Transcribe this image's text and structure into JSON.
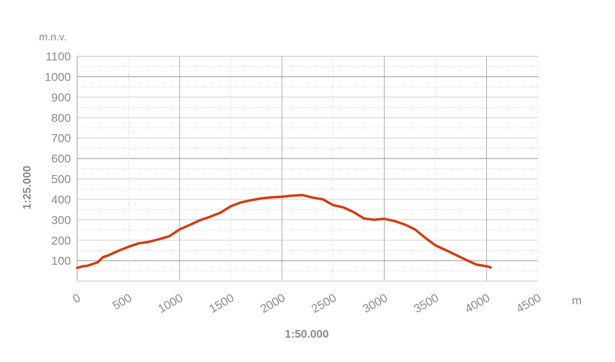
{
  "chart_data": {
    "type": "line",
    "title": "",
    "y_unit_label": "m.n.v.",
    "x_unit_label": "m",
    "ylabel": "1:25.000",
    "xlabel": "1:50.000",
    "xlim": [
      0,
      4500
    ],
    "ylim": [
      0,
      1100
    ],
    "x_ticks": [
      0,
      500,
      1000,
      1500,
      2000,
      2500,
      3000,
      3500,
      4000,
      4500
    ],
    "y_ticks": [
      100,
      200,
      300,
      400,
      500,
      600,
      700,
      800,
      900,
      1000,
      1100
    ],
    "grid": true,
    "line_color": "#d63a0e",
    "series": [
      {
        "x": [
          0,
          50,
          100,
          200,
          250,
          300,
          400,
          500,
          600,
          700,
          800,
          900,
          1000,
          1100,
          1200,
          1300,
          1400,
          1500,
          1600,
          1700,
          1800,
          1900,
          2000,
          2100,
          2200,
          2300,
          2400,
          2500,
          2600,
          2700,
          2800,
          2900,
          3000,
          3100,
          3200,
          3300,
          3400,
          3500,
          3600,
          3700,
          3800,
          3900,
          4000,
          4040
        ],
        "y": [
          65,
          72,
          75,
          92,
          117,
          125,
          148,
          168,
          185,
          192,
          205,
          220,
          253,
          275,
          298,
          315,
          335,
          366,
          385,
          396,
          405,
          410,
          413,
          418,
          421,
          409,
          400,
          372,
          361,
          338,
          307,
          300,
          305,
          294,
          277,
          253,
          212,
          175,
          152,
          128,
          104,
          81,
          73,
          67
        ]
      }
    ]
  }
}
